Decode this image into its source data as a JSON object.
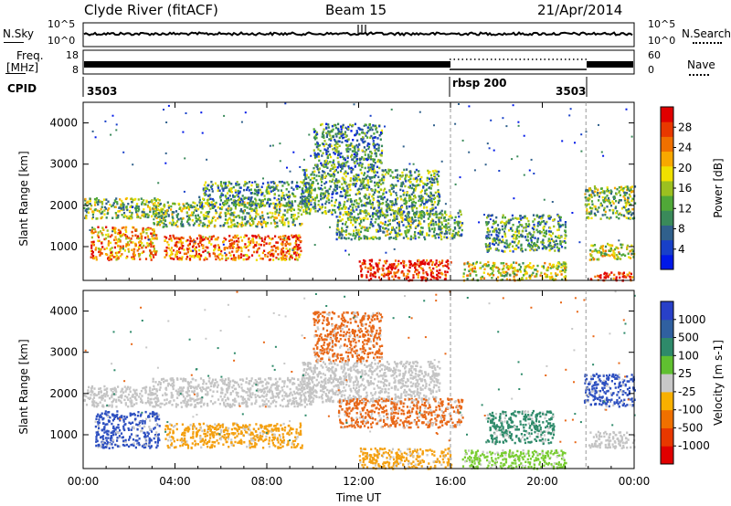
{
  "header": {
    "station": "Clyde River (fitACF)",
    "beam": "Beam 15",
    "date": "21/Apr/2014"
  },
  "panels": {
    "nsky_label": "N.Sky",
    "nsky_ticks": [
      "10^5",
      "10^0"
    ],
    "nsearch_label": "N.Search",
    "nsearch_ticks": [
      "10^5",
      "10^0"
    ],
    "freq_label_1": "Freq.",
    "freq_label_2": "[MHz]",
    "freq_ticks": [
      "18",
      "8"
    ],
    "nave_label": "Nave",
    "nave_ticks": [
      "60",
      "0"
    ],
    "cpid_label": "CPID",
    "cpid_segments": [
      "3503",
      "rbsp 200",
      "3503"
    ]
  },
  "chart_data": [
    {
      "type": "heatmap",
      "name": "power",
      "title": "",
      "xlabel": "",
      "ylabel": "Slant Range [km]",
      "x_ticks": [
        "00:00",
        "04:00",
        "08:00",
        "12:00",
        "16:00",
        "20:00",
        "00:00"
      ],
      "xlim_hours": [
        0,
        24
      ],
      "y_ticks": [
        1000,
        2000,
        3000,
        4000
      ],
      "ylim_km": [
        180,
        4500
      ],
      "colorbar_label": "Power [dB]",
      "colorbar_ticks": [
        "4",
        "8",
        "12",
        "16",
        "20",
        "24",
        "28"
      ],
      "colorbar_colors": [
        "#0018e8",
        "#1840c8",
        "#30608c",
        "#3a8a5a",
        "#50a838",
        "#9cc020",
        "#f0e000",
        "#f8a800",
        "#f07000",
        "#e83800",
        "#e00000"
      ],
      "mode_change_hours": [
        16.0,
        21.9
      ],
      "bands": [
        {
          "t": [
            0.0,
            3.5
          ],
          "r": [
            1700,
            2200
          ],
          "level": 0.45
        },
        {
          "t": [
            0.3,
            3.2
          ],
          "r": [
            700,
            1500
          ],
          "level": 0.72
        },
        {
          "t": [
            3.5,
            9.5
          ],
          "r": [
            700,
            1300
          ],
          "level": 0.78
        },
        {
          "t": [
            3.0,
            9.5
          ],
          "r": [
            1500,
            2100
          ],
          "level": 0.45
        },
        {
          "t": [
            5.0,
            10.0
          ],
          "r": [
            2000,
            2600
          ],
          "level": 0.35
        },
        {
          "t": [
            9.5,
            15.5
          ],
          "r": [
            1800,
            2900
          ],
          "level": 0.38
        },
        {
          "t": [
            10.0,
            13.0
          ],
          "r": [
            2900,
            4000
          ],
          "level": 0.32
        },
        {
          "t": [
            11.0,
            16.5
          ],
          "r": [
            1200,
            1900
          ],
          "level": 0.4
        },
        {
          "t": [
            12.0,
            16.0
          ],
          "r": [
            200,
            700
          ],
          "level": 0.92
        },
        {
          "t": [
            16.5,
            21.0
          ],
          "r": [
            200,
            650
          ],
          "level": 0.55
        },
        {
          "t": [
            17.5,
            21.0
          ],
          "r": [
            900,
            1800
          ],
          "level": 0.35
        },
        {
          "t": [
            21.8,
            24.0
          ],
          "r": [
            1700,
            2500
          ],
          "level": 0.45
        },
        {
          "t": [
            22.0,
            24.0
          ],
          "r": [
            700,
            1100
          ],
          "level": 0.55
        },
        {
          "t": [
            22.0,
            24.0
          ],
          "r": [
            200,
            400
          ],
          "level": 0.9
        }
      ]
    },
    {
      "type": "heatmap",
      "name": "velocity",
      "title": "",
      "xlabel": "Time UT",
      "ylabel": "Slant Range [km]",
      "x_ticks": [
        "00:00",
        "04:00",
        "08:00",
        "12:00",
        "16:00",
        "20:00",
        "00:00"
      ],
      "xlim_hours": [
        0,
        24
      ],
      "y_ticks": [
        1000,
        2000,
        3000,
        4000
      ],
      "ylim_km": [
        180,
        4500
      ],
      "colorbar_label": "Velocity [m s-1]",
      "colorbar_ticks": [
        "1000",
        "500",
        "100",
        "25",
        "-25",
        "-100",
        "-500",
        "-1000"
      ],
      "colorbar_colors": [
        "#2840c8",
        "#3060a0",
        "#2e8a6a",
        "#60c030",
        "#c8c8c8",
        "#f8b000",
        "#f07000",
        "#e83800",
        "#e00000"
      ],
      "mode_change_hours": [
        16.0,
        21.9
      ],
      "bands": [
        {
          "t": [
            0.0,
            3.0
          ],
          "r": [
            1700,
            2200
          ],
          "kind": "gray"
        },
        {
          "t": [
            0.5,
            3.3
          ],
          "r": [
            700,
            1600
          ],
          "kind": "blue"
        },
        {
          "t": [
            3.5,
            9.5
          ],
          "r": [
            700,
            1300
          ],
          "kind": "orange"
        },
        {
          "t": [
            3.0,
            10.0
          ],
          "r": [
            1700,
            2400
          ],
          "kind": "gray"
        },
        {
          "t": [
            9.5,
            15.5
          ],
          "r": [
            1800,
            2800
          ],
          "kind": "gray"
        },
        {
          "t": [
            10.0,
            13.0
          ],
          "r": [
            2800,
            4000
          ],
          "kind": "darkorange"
        },
        {
          "t": [
            11.0,
            16.5
          ],
          "r": [
            1200,
            1900
          ],
          "kind": "darkorange"
        },
        {
          "t": [
            12.0,
            16.0
          ],
          "r": [
            200,
            700
          ],
          "kind": "orange"
        },
        {
          "t": [
            16.5,
            21.0
          ],
          "r": [
            200,
            650
          ],
          "kind": "lightgreen"
        },
        {
          "t": [
            17.5,
            20.5
          ],
          "r": [
            800,
            1600
          ],
          "kind": "teal"
        },
        {
          "t": [
            21.8,
            24.0
          ],
          "r": [
            1700,
            2500
          ],
          "kind": "blue"
        },
        {
          "t": [
            22.0,
            24.0
          ],
          "r": [
            700,
            1100
          ],
          "kind": "gray"
        }
      ]
    }
  ]
}
